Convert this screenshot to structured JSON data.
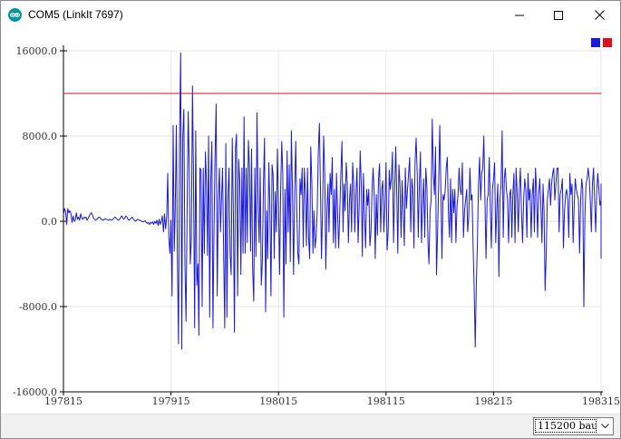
{
  "window": {
    "title": "COM5 (LinkIt 7697)",
    "app_icon": "arduino-logo-icon",
    "controls": [
      "minimize-icon",
      "maximize-icon",
      "close-icon"
    ]
  },
  "plotter": {
    "colors": {
      "series_1": "#1a1ad8",
      "series_2": "#e0101a",
      "grid": "#e6e6e6"
    },
    "legend": {
      "placement": "top-right",
      "swatches": [
        {
          "color": "#1a1ad8"
        },
        {
          "color": "#e0101a"
        }
      ]
    }
  },
  "chart_data": {
    "type": "line",
    "title": "",
    "xlabel": "",
    "ylabel": "",
    "xlim": [
      197815,
      198315
    ],
    "ylim": [
      -16000,
      16000
    ],
    "grid": true,
    "x_ticks": [
      "197815",
      "197915",
      "198015",
      "198115",
      "198215",
      "198315"
    ],
    "y_ticks": [
      "16000.0",
      "8000.0",
      "0.0",
      "-8000.0",
      "-16000.0"
    ],
    "series": [
      {
        "color": "#1a1ad8",
        "x_start": 197815,
        "x_step": 1,
        "values": [
          600,
          1200,
          900,
          -300,
          1200,
          800,
          1000,
          700,
          -100,
          500,
          0,
          100,
          800,
          200,
          400,
          100,
          700,
          300,
          200,
          400,
          300,
          400,
          100,
          300,
          500,
          700,
          800,
          600,
          300,
          200,
          100,
          200,
          300,
          400,
          350,
          200,
          150,
          100,
          200,
          250,
          200,
          150,
          100,
          200,
          150,
          100,
          200,
          300,
          400,
          300,
          200,
          100,
          200,
          300,
          500,
          400,
          200,
          300,
          500,
          400,
          200,
          100,
          200,
          300,
          400,
          200,
          100,
          0,
          100,
          200,
          150,
          100,
          50,
          0,
          -50,
          0,
          50,
          -100,
          -200,
          -100,
          -300,
          -100,
          -200,
          -50,
          -300,
          0,
          -200,
          100,
          -400,
          200,
          -300,
          0,
          500,
          -1000,
          700,
          -700,
          400,
          4500,
          -1500,
          -3000,
          100,
          -7000,
          9000,
          -2800,
          1200,
          9000,
          -3600,
          -11500,
          8000,
          15800,
          -12000,
          8000,
          10500,
          -4000,
          -9400,
          1000,
          10300,
          5000,
          -4000,
          -1600,
          12700,
          3700,
          -10000,
          8500,
          -6000,
          -4000,
          -10700,
          5000,
          4800,
          -8000,
          5000,
          -3000,
          6500,
          3800,
          -3200,
          8000,
          -9000,
          4000,
          7500,
          -10000,
          -1200,
          6000,
          11000,
          -7000,
          2000,
          5000,
          -1000,
          2000,
          5000,
          -3000,
          -10000,
          7300,
          -9000,
          2500,
          5000,
          -3000,
          -5000,
          7800,
          1000,
          -10400,
          7000,
          8200,
          -7000,
          5800,
          3700,
          -5000,
          5000,
          -3000,
          9800,
          -3000,
          5000,
          -2000,
          7600,
          5000,
          -2800,
          6800,
          -4500,
          -7500,
          5000,
          -3300,
          10200,
          1500,
          -2000,
          5000,
          -6000,
          -3800,
          3500,
          7800,
          -8500,
          1000,
          -3500,
          5500,
          1400,
          -7000,
          5300,
          4300,
          -3500,
          2800,
          -1000,
          6800,
          1500,
          -5000,
          3000,
          7500,
          4500,
          -9000,
          3000,
          -4000,
          6600,
          -1000,
          5300,
          -3800,
          8500,
          3000,
          -5000,
          2500,
          7500,
          1000,
          -3000,
          -4000,
          4000,
          2500,
          5000,
          -2400,
          5000,
          2500,
          -2300,
          5000,
          -1500,
          -3500,
          7000,
          3500,
          -3000,
          1000,
          -2500,
          -1500,
          1000,
          6500,
          9200,
          3000,
          -3500,
          1000,
          8000,
          4500,
          -4500,
          1000,
          3500,
          -1000,
          4500,
          2500,
          6000,
          -2000,
          3000,
          -2500,
          4500,
          600,
          -2500,
          1000,
          4500,
          7500,
          -1000,
          3500,
          1000,
          5500,
          3500,
          -2000,
          2000,
          3500,
          -1000,
          5500,
          3500,
          -1000,
          2500,
          5000,
          -2000,
          1500,
          6600,
          3500,
          -3300,
          4500,
          600,
          -2500,
          3000,
          1500,
          3000,
          -2300,
          -1000,
          3000,
          5000,
          2400,
          -3500,
          2500,
          -1300,
          4000,
          5400,
          -1000,
          3000,
          3800,
          -1000,
          1500,
          5500,
          -2700,
          -1000,
          4800,
          3000,
          4000,
          6500,
          -2000,
          3000,
          7000,
          2400,
          -3000,
          5300,
          3500,
          -1500,
          3800,
          1000,
          -2300,
          5000,
          1200,
          3000,
          4500,
          6000,
          -1000,
          4000,
          3000,
          -2500,
          5500,
          7800,
          4500,
          -1500,
          3600,
          6500,
          -2000,
          1500,
          4000,
          -1500,
          5000,
          3200,
          -2000,
          -4000,
          1000,
          2000,
          9600,
          4500,
          2500,
          7000,
          -5000,
          -1000,
          3500,
          9000,
          3000,
          -3500,
          2500,
          2000,
          2800,
          5000,
          6000,
          1000,
          -1500,
          4000,
          -2000,
          3000,
          800,
          3000,
          -2000,
          1500,
          2500,
          5000,
          3000,
          2500,
          5500,
          -1500,
          1000,
          2000,
          3000,
          -1000,
          500,
          5000,
          2000,
          2500,
          -2500,
          -6500,
          -11800,
          -6000,
          -2000,
          3500,
          6000,
          2000,
          4500,
          5000,
          8000,
          2000,
          -3500,
          2000,
          2500,
          6000,
          1500,
          -2500,
          3000,
          4000,
          5500,
          -2000,
          1200,
          3500,
          -5200,
          2000,
          3500,
          8500,
          -1500,
          4000,
          5000,
          3000,
          2000,
          -2000,
          2500,
          3000,
          -1500,
          2500,
          4500,
          -2000,
          5000,
          2500,
          -1000,
          3000,
          5000,
          1000,
          -2000,
          2000,
          4000,
          3000,
          -1500,
          4500,
          2000,
          3000,
          -1500,
          2500,
          4000,
          -1000,
          5000,
          3000,
          -1500,
          2500,
          4000,
          1500,
          -2000,
          3500,
          1000,
          -6500,
          -3000,
          2000,
          3000,
          4000,
          1500,
          3500,
          4500,
          5000,
          2000,
          3500,
          5000,
          5000,
          -1000,
          2500,
          3000,
          4000,
          -2500,
          1000,
          2500,
          3000,
          2000,
          -1500,
          4500,
          2500,
          3500,
          -2000,
          1500,
          4000,
          3000,
          2500,
          2000,
          -3000,
          2000,
          4000,
          3000,
          -8000,
          500,
          3500,
          4000,
          5000,
          4000,
          2000,
          -1000,
          3500,
          5000,
          2000,
          -1000,
          3000,
          4500,
          3000,
          1500,
          2000,
          -2000,
          1500,
          3500,
          2500,
          -1000,
          3000,
          2000,
          500,
          -3500
        ]
      },
      {
        "color": "#e0101a",
        "values": [
          12000
        ]
      }
    ]
  },
  "statusbar": {
    "baud_label": "115200 baud",
    "dropdown_icon": "chevron-down-icon"
  }
}
